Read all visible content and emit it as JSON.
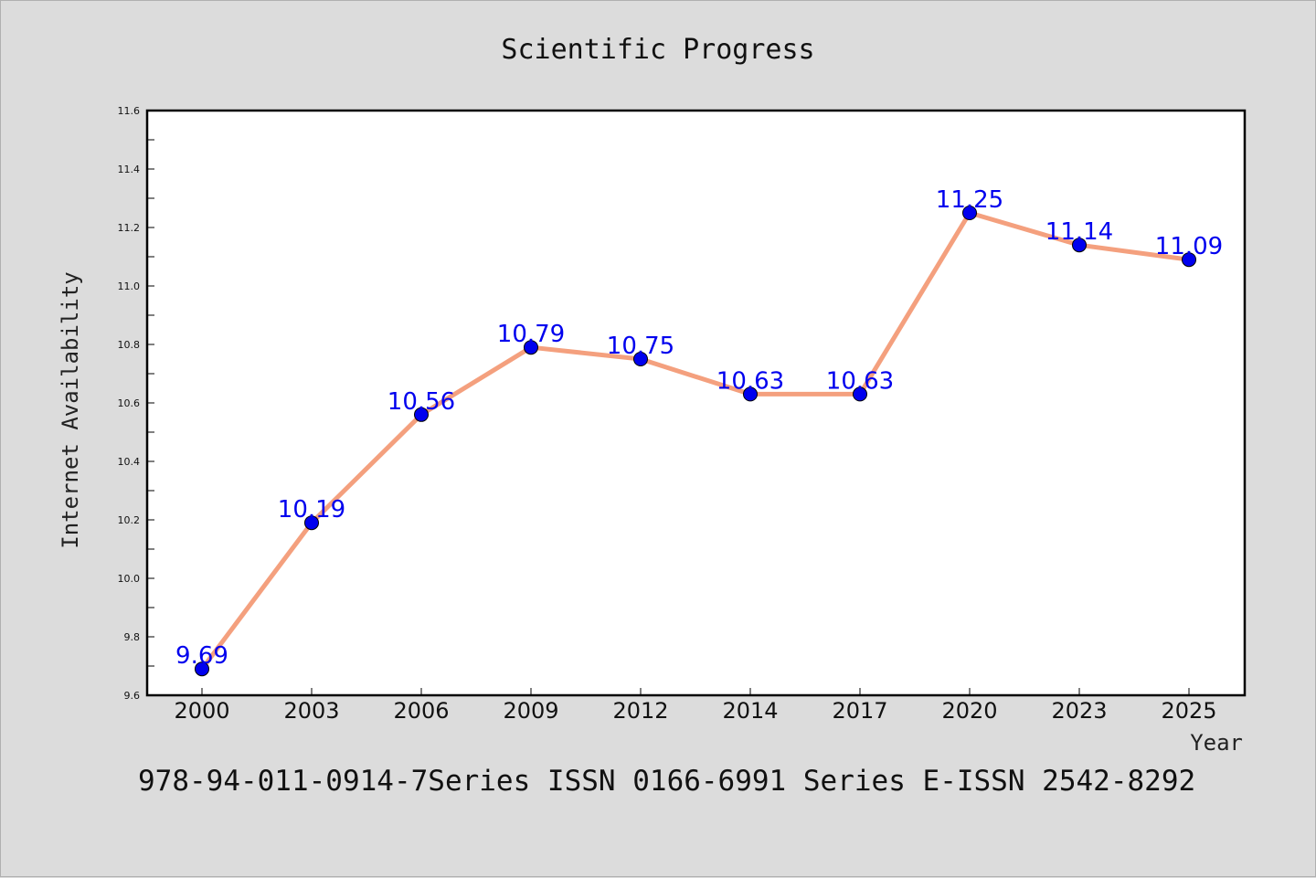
{
  "chart_data": {
    "type": "line",
    "title": "Scientific Progress",
    "xlabel": "Year",
    "ylabel": "Internet Availability",
    "categories": [
      "2000",
      "2003",
      "2006",
      "2009",
      "2012",
      "2014",
      "2017",
      "2020",
      "2023",
      "2025"
    ],
    "series": [
      {
        "values": [
          9.69,
          10.19,
          10.56,
          10.79,
          10.75,
          10.63,
          10.63,
          11.25,
          11.14,
          11.09
        ],
        "labels": [
          "9.69",
          "10.19",
          "10.56",
          "10.79",
          "10.75",
          "10.63",
          "10.63",
          "11.25",
          "11.14",
          "11.09"
        ]
      }
    ],
    "ylim": [
      9.6,
      11.6
    ],
    "yticks": [
      "9.6",
      "9.8",
      "10.0",
      "10.2",
      "10.4",
      "10.6",
      "10.8",
      "11.0",
      "11.2",
      "11.4",
      "11.6"
    ],
    "line_color": "#f4a07e",
    "marker_color": "#0000ee",
    "label_color": "#0000ee",
    "grid": false,
    "legend": "none"
  },
  "footnote": "978-94-011-0914-7Series ISSN 0166-6991 Series E-ISSN 2542-8292"
}
